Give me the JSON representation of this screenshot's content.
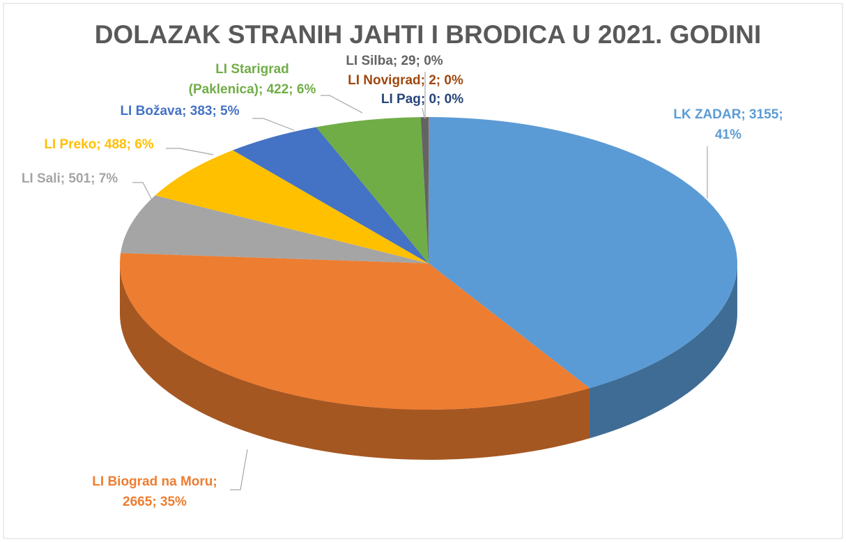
{
  "chart_data": {
    "type": "pie3d",
    "title": "DOLAZAK STRANIH JAHTI I BRODICA U 2021. GODINI",
    "values": [
      3155,
      2665,
      501,
      488,
      383,
      422,
      29,
      2,
      0
    ],
    "value_labels": [
      [
        "LK ZADAR; 3155;",
        "41%"
      ],
      [
        "LI Biograd na Moru;",
        "2665; 35%"
      ],
      [
        "LI Sali; 501; 7%"
      ],
      [
        "LI Preko; 488; 6%"
      ],
      [
        "LI Božava; 383; 5%"
      ],
      [
        "LI Starigrad",
        "(Paklenica); 422; 6%"
      ],
      [
        "LI Silba; 29; 0%"
      ],
      [
        "LI Novigrad; 2; 0%"
      ],
      [
        "LI Pag; 0; 0%"
      ]
    ],
    "colors": [
      "#5b9bd5",
      "#ed7d31",
      "#a5a5a5",
      "#ffc000",
      "#4472c4",
      "#70ad47",
      "#636363",
      "#9e480e",
      "#264478"
    ]
  }
}
